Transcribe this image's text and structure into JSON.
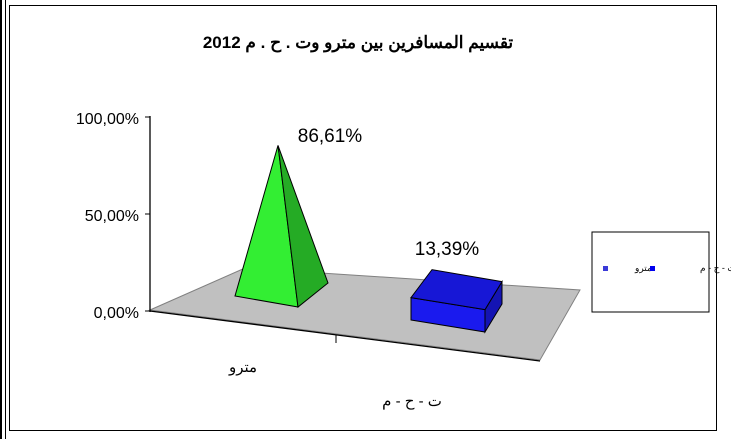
{
  "chart_data": {
    "type": "bar",
    "title": "تقسيم المسافرين بين مترو وت . ح . م  2012",
    "categories": [
      "مترو",
      "ت - ح - م"
    ],
    "values": [
      86.61,
      13.39
    ],
    "data_labels": [
      "86,61%",
      "13,39%"
    ],
    "y_ticks": [
      "0,00%",
      "50,00%",
      "100,00%"
    ],
    "ylim": [
      0,
      100
    ],
    "legend": {
      "position": "right",
      "entries": [
        {
          "label": "مترو",
          "color": "#3a3ad8"
        },
        {
          "label": "ت - ح - م",
          "color": "#0000ee"
        }
      ]
    },
    "colors": {
      "pyramid": "#33ee33",
      "box": "#1a1aee",
      "floor": "#c0c0c0"
    },
    "grid": false
  }
}
